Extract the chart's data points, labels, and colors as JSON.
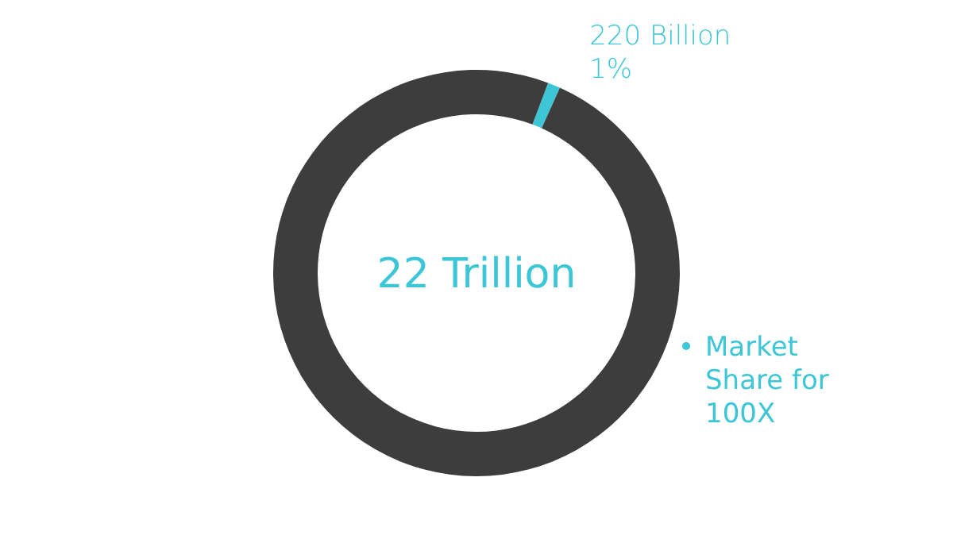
{
  "chart_data": {
    "type": "donut",
    "title": "22 Trillion",
    "categories": [
      "Market Share for 100X",
      null
    ],
    "values": [
      1,
      99
    ],
    "colors": [
      "#3cc6d6",
      "#3d3d3d"
    ],
    "value_labels": [
      "220 Billion\n1%",
      null
    ],
    "legend": "right"
  }
}
